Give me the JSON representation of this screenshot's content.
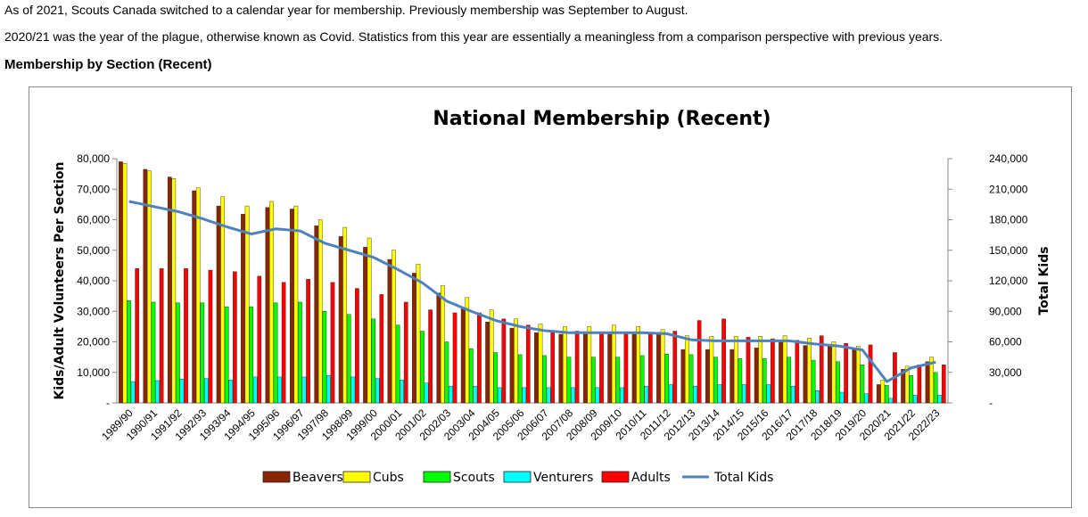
{
  "intro": {
    "line1": "As of 2021, Scouts Canada switched to a calendar year for membership. Previously membership was September to August.",
    "line2": "2020/21 was the year of the plague, otherwise known as Covid. Statistics from this year are essentially a meaningless from a comparison perspective with previous years."
  },
  "section_heading": "Membership by Section (Recent)",
  "chart_data": {
    "type": "bar",
    "title": "National Membership (Recent)",
    "ylabel": "Kids/Adult Volunteers Per Section",
    "y2label": "Total Kids",
    "ylim": [
      0,
      80000
    ],
    "y2lim": [
      0,
      240000
    ],
    "yticks": [
      "-",
      "10,000",
      "20,000",
      "30,000",
      "40,000",
      "50,000",
      "60,000",
      "70,000",
      "80,000"
    ],
    "y2ticks": [
      "-",
      "30,000",
      "60,000",
      "90,000",
      "120,000",
      "150,000",
      "180,000",
      "210,000",
      "240,000"
    ],
    "legend_position": "bottom",
    "categories": [
      "1989/90",
      "1990/91",
      "1991/92",
      "1992/93",
      "1993/94",
      "1994/95",
      "1995/96",
      "1996/97",
      "1997/98",
      "1998/99",
      "1999/00",
      "2000/01",
      "2001/02",
      "2002/03",
      "2003/04",
      "2004/05",
      "2005/06",
      "2006/07",
      "2007/08",
      "2008/09",
      "2009/10",
      "2010/11",
      "2011/12",
      "2012/13",
      "2013/14",
      "2014/15",
      "2015/16",
      "2016/17",
      "2017/18",
      "2018/19",
      "2019/20",
      "2020/21",
      "2021/22",
      "2022/23"
    ],
    "series": [
      {
        "name": "Beavers",
        "color": "#8B2500",
        "axis": "left",
        "values": [
          79000,
          76500,
          74000,
          69500,
          64500,
          61800,
          64000,
          63500,
          58000,
          54500,
          51000,
          47000,
          42500,
          36000,
          31000,
          26500,
          24500,
          23000,
          22500,
          22500,
          22500,
          22500,
          22500,
          17500,
          17500,
          17500,
          18000,
          20500,
          18800,
          18800,
          18000,
          6000,
          11000,
          13500
        ]
      },
      {
        "name": "Cubs",
        "color": "#FFFF00",
        "axis": "left",
        "values": [
          78500,
          76000,
          73500,
          70500,
          67500,
          64500,
          66000,
          64500,
          60000,
          57500,
          54000,
          50000,
          45500,
          38500,
          34500,
          30500,
          27500,
          25800,
          25000,
          25000,
          25500,
          25000,
          24000,
          22000,
          21800,
          21800,
          21800,
          22000,
          21200,
          20000,
          18500,
          7500,
          12000,
          15000
        ]
      },
      {
        "name": "Scouts",
        "color": "#00FF00",
        "axis": "left",
        "values": [
          33500,
          33000,
          32800,
          32800,
          31500,
          31500,
          32800,
          33000,
          30000,
          29000,
          27500,
          25500,
          23500,
          20000,
          17800,
          16500,
          15800,
          15500,
          15000,
          15000,
          15000,
          15500,
          16000,
          15800,
          15000,
          14500,
          14500,
          15000,
          14000,
          13500,
          12500,
          5800,
          9000,
          10000
        ]
      },
      {
        "name": "Venturers",
        "color": "#00FFFF",
        "axis": "left",
        "values": [
          7000,
          7300,
          7800,
          8000,
          7500,
          8500,
          8500,
          8500,
          9000,
          8500,
          8000,
          7500,
          6500,
          5500,
          5500,
          5000,
          5000,
          5000,
          5000,
          5000,
          5000,
          5500,
          6000,
          5500,
          6000,
          6000,
          6000,
          5500,
          4000,
          3500,
          3000,
          1500,
          2500,
          2500
        ]
      },
      {
        "name": "Adults",
        "color": "#FF0000",
        "axis": "left",
        "values": [
          44000,
          44000,
          44000,
          43500,
          43000,
          41500,
          39500,
          40500,
          39500,
          37500,
          35500,
          33000,
          30500,
          29500,
          29500,
          27500,
          25500,
          23500,
          23500,
          23000,
          23000,
          23000,
          23500,
          27000,
          27500,
          21500,
          21000,
          20500,
          22000,
          19500,
          19000,
          16500,
          12500,
          12500
        ]
      },
      {
        "name": "Total Kids",
        "color": "#4F81BD",
        "axis": "right",
        "type": "line",
        "values": [
          198000,
          193000,
          188000,
          181000,
          173000,
          166000,
          171000,
          169000,
          157000,
          150000,
          143000,
          131000,
          118000,
          100000,
          90000,
          81000,
          75000,
          71000,
          69000,
          69000,
          69000,
          69000,
          68000,
          62000,
          61000,
          61000,
          61000,
          61000,
          58000,
          56000,
          52000,
          21000,
          34500,
          40000
        ]
      }
    ]
  }
}
